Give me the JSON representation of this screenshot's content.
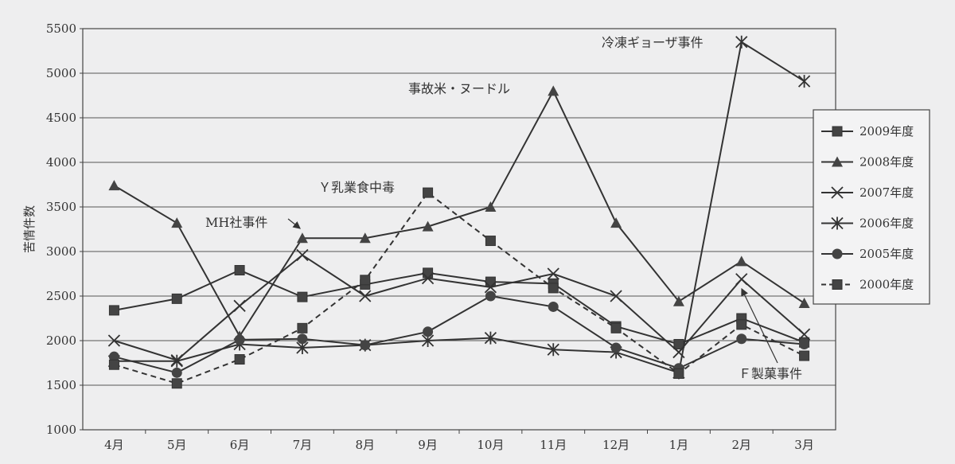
{
  "chart_data": {
    "type": "line",
    "title": "",
    "xlabel": "",
    "ylabel": "苦情件数",
    "ylim": [
      1000,
      5500
    ],
    "yticks": [
      1000,
      1500,
      2000,
      2500,
      3000,
      3500,
      4000,
      4500,
      5000,
      5500
    ],
    "grid": "horizontal",
    "legend_position": "right",
    "categories": [
      "4月",
      "5月",
      "6月",
      "7月",
      "8月",
      "9月",
      "10月",
      "11月",
      "12月",
      "1月",
      "2月",
      "3月"
    ],
    "series": [
      {
        "name": "2009年度",
        "marker": "square",
        "dash": false,
        "values": [
          2340,
          2470,
          2790,
          2490,
          2630,
          2760,
          2660,
          2640,
          2160,
          1960,
          2250,
          1980
        ]
      },
      {
        "name": "2008年度",
        "marker": "triangle",
        "dash": false,
        "values": [
          3740,
          3320,
          2050,
          3150,
          3150,
          3280,
          3500,
          4800,
          3320,
          2440,
          2890,
          2420
        ]
      },
      {
        "name": "2007年度",
        "marker": "x",
        "dash": false,
        "values": [
          2000,
          1780,
          2390,
          2960,
          2500,
          2700,
          2600,
          2750,
          2500,
          1870,
          2690,
          2070
        ]
      },
      {
        "name": "2006年度",
        "marker": "asterisk",
        "dash": false,
        "values": [
          1770,
          1770,
          1960,
          1920,
          1950,
          2000,
          2030,
          1900,
          1870,
          1640,
          5350,
          4910
        ]
      },
      {
        "name": "2005年度",
        "marker": "circle",
        "dash": false,
        "values": [
          1820,
          1640,
          2010,
          2020,
          1950,
          2100,
          2500,
          2380,
          1920,
          1690,
          2020,
          1960
        ]
      },
      {
        "name": "2000年度",
        "marker": "square",
        "dash": true,
        "values": [
          1730,
          1520,
          1790,
          2140,
          2680,
          3660,
          3120,
          2590,
          2140,
          1630,
          2180,
          1830
        ]
      }
    ],
    "annotations": [
      {
        "text": "冷凍ギョーザ事件"
      },
      {
        "text": "事故米・ヌードル"
      },
      {
        "text": "Ｙ乳業食中毒"
      },
      {
        "text": "MH社事件"
      },
      {
        "text": "Ｆ製菓事件"
      }
    ]
  }
}
